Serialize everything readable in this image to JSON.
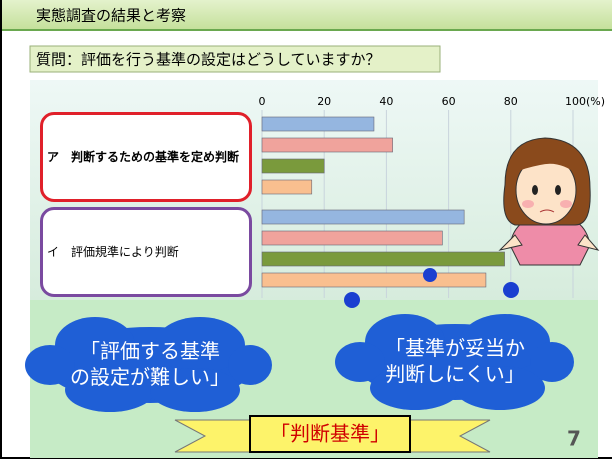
{
  "header": {
    "title": "実態調査の結果と考察"
  },
  "question": "質問：評価を行う基準の設定はどうしていますか？",
  "chart_data": {
    "type": "bar",
    "orientation": "horizontal",
    "categories": [
      "ア　判断するための基準を定め判断",
      "イ　評価規準により判断"
    ],
    "series": [
      {
        "color": "#95b6e0",
        "values": [
          36,
          65
        ]
      },
      {
        "color": "#f0a39c",
        "values": [
          42,
          58
        ]
      },
      {
        "color": "#7a9a3c",
        "values": [
          20,
          78
        ]
      },
      {
        "color": "#f9bf8f",
        "values": [
          16,
          72
        ]
      }
    ],
    "xlim": [
      0,
      100
    ],
    "xticks": [
      0,
      20,
      40,
      60,
      80,
      {
        "value": 100,
        "label": "100(%)"
      }
    ],
    "grid": true
  },
  "callouts": [
    {
      "lines": [
        "「評価する基準",
        "の設定が難しい」"
      ]
    },
    {
      "lines": [
        "「基準が妥当か",
        "判断しにくい」"
      ]
    }
  ],
  "banner": "「判断基準」",
  "page_number": "7"
}
